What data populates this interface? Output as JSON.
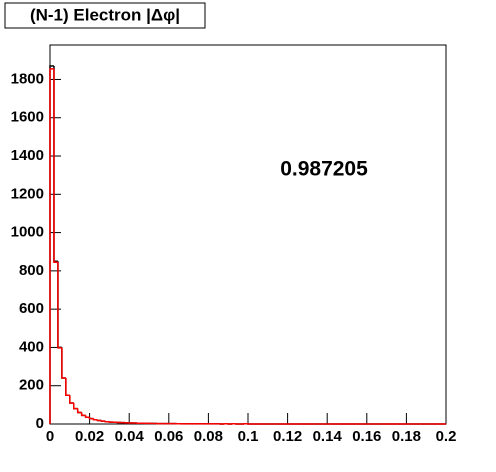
{
  "chart_data": {
    "type": "histogram",
    "title": "(N-1) Electron |Δφ|",
    "annotation": "0.987205",
    "bins": [
      0,
      0.002,
      0.004,
      0.006,
      0.008,
      0.01,
      0.012,
      0.014,
      0.016,
      0.018,
      0.02,
      0.022,
      0.024,
      0.026,
      0.028,
      0.03,
      0.032,
      0.034,
      0.036,
      0.038,
      0.04,
      0.042,
      0.044,
      0.046,
      0.048,
      0.05,
      0.052,
      0.054,
      0.056,
      0.058,
      0.06,
      0.062,
      0.064,
      0.066,
      0.068,
      0.07,
      0.072,
      0.074,
      0.076,
      0.078,
      0.08,
      0.082,
      0.084,
      0.086,
      0.088,
      0.09,
      0.092,
      0.094,
      0.096,
      0.098,
      0.1,
      0.102,
      0.104,
      0.106,
      0.108,
      0.11,
      0.112,
      0.114,
      0.116,
      0.118,
      0.12,
      0.122,
      0.124,
      0.126,
      0.128,
      0.13,
      0.132,
      0.134,
      0.136,
      0.138,
      0.14,
      0.142,
      0.144,
      0.146,
      0.148,
      0.15,
      0.152,
      0.154,
      0.156,
      0.158,
      0.16,
      0.162,
      0.164,
      0.166,
      0.168,
      0.17,
      0.172,
      0.174,
      0.176,
      0.178,
      0.18,
      0.182,
      0.184,
      0.186,
      0.188,
      0.19,
      0.192,
      0.194,
      0.196,
      0.198,
      0.2
    ],
    "series": [
      {
        "color": "#000000",
        "values": [
          1870,
          850,
          400,
          240,
          150,
          110,
          80,
          60,
          45,
          35,
          28,
          22,
          18,
          15,
          12,
          10,
          9,
          8,
          7,
          6,
          5,
          5,
          4,
          4,
          3,
          3,
          3,
          2,
          2,
          2,
          2,
          2,
          1,
          1,
          1,
          1,
          1,
          1,
          1,
          1,
          1,
          1,
          1,
          0,
          1,
          0,
          1,
          0,
          0,
          1,
          0,
          0,
          0,
          0,
          0,
          0,
          0,
          0,
          0,
          0,
          0,
          0,
          0,
          0,
          0,
          0,
          0,
          0,
          0,
          0,
          0,
          0,
          0,
          0,
          0,
          0,
          0,
          0,
          0,
          0,
          0,
          0,
          0,
          0,
          0,
          0,
          0,
          0,
          0,
          0,
          0,
          0,
          0,
          0,
          0,
          0,
          0,
          0,
          0,
          0
        ]
      },
      {
        "color": "#ff0000",
        "values": [
          1855,
          845,
          398,
          240,
          150,
          110,
          80,
          60,
          45,
          35,
          28,
          22,
          18,
          15,
          12,
          10,
          9,
          8,
          7,
          6,
          5,
          5,
          4,
          4,
          3,
          3,
          3,
          2,
          2,
          2,
          2,
          2,
          1,
          1,
          1,
          1,
          1,
          1,
          1,
          1,
          1,
          1,
          1,
          0,
          1,
          0,
          1,
          0,
          0,
          1,
          0,
          0,
          0,
          0,
          0,
          0,
          0,
          0,
          0,
          0,
          0,
          0,
          0,
          0,
          0,
          0,
          0,
          0,
          0,
          0,
          0,
          0,
          0,
          0,
          0,
          0,
          0,
          0,
          0,
          0,
          0,
          0,
          0,
          0,
          0,
          0,
          0,
          0,
          0,
          0,
          0,
          0,
          0,
          0,
          0,
          0,
          0,
          0,
          0,
          0
        ]
      }
    ],
    "xlim": [
      0,
      0.2
    ],
    "ylim": [
      0,
      1980
    ],
    "xticks": [
      0,
      0.02,
      0.04,
      0.06,
      0.08,
      0.1,
      0.12,
      0.14,
      0.16,
      0.18,
      0.2
    ],
    "yticks": [
      0,
      200,
      400,
      600,
      800,
      1000,
      1200,
      1400,
      1600,
      1800
    ]
  }
}
